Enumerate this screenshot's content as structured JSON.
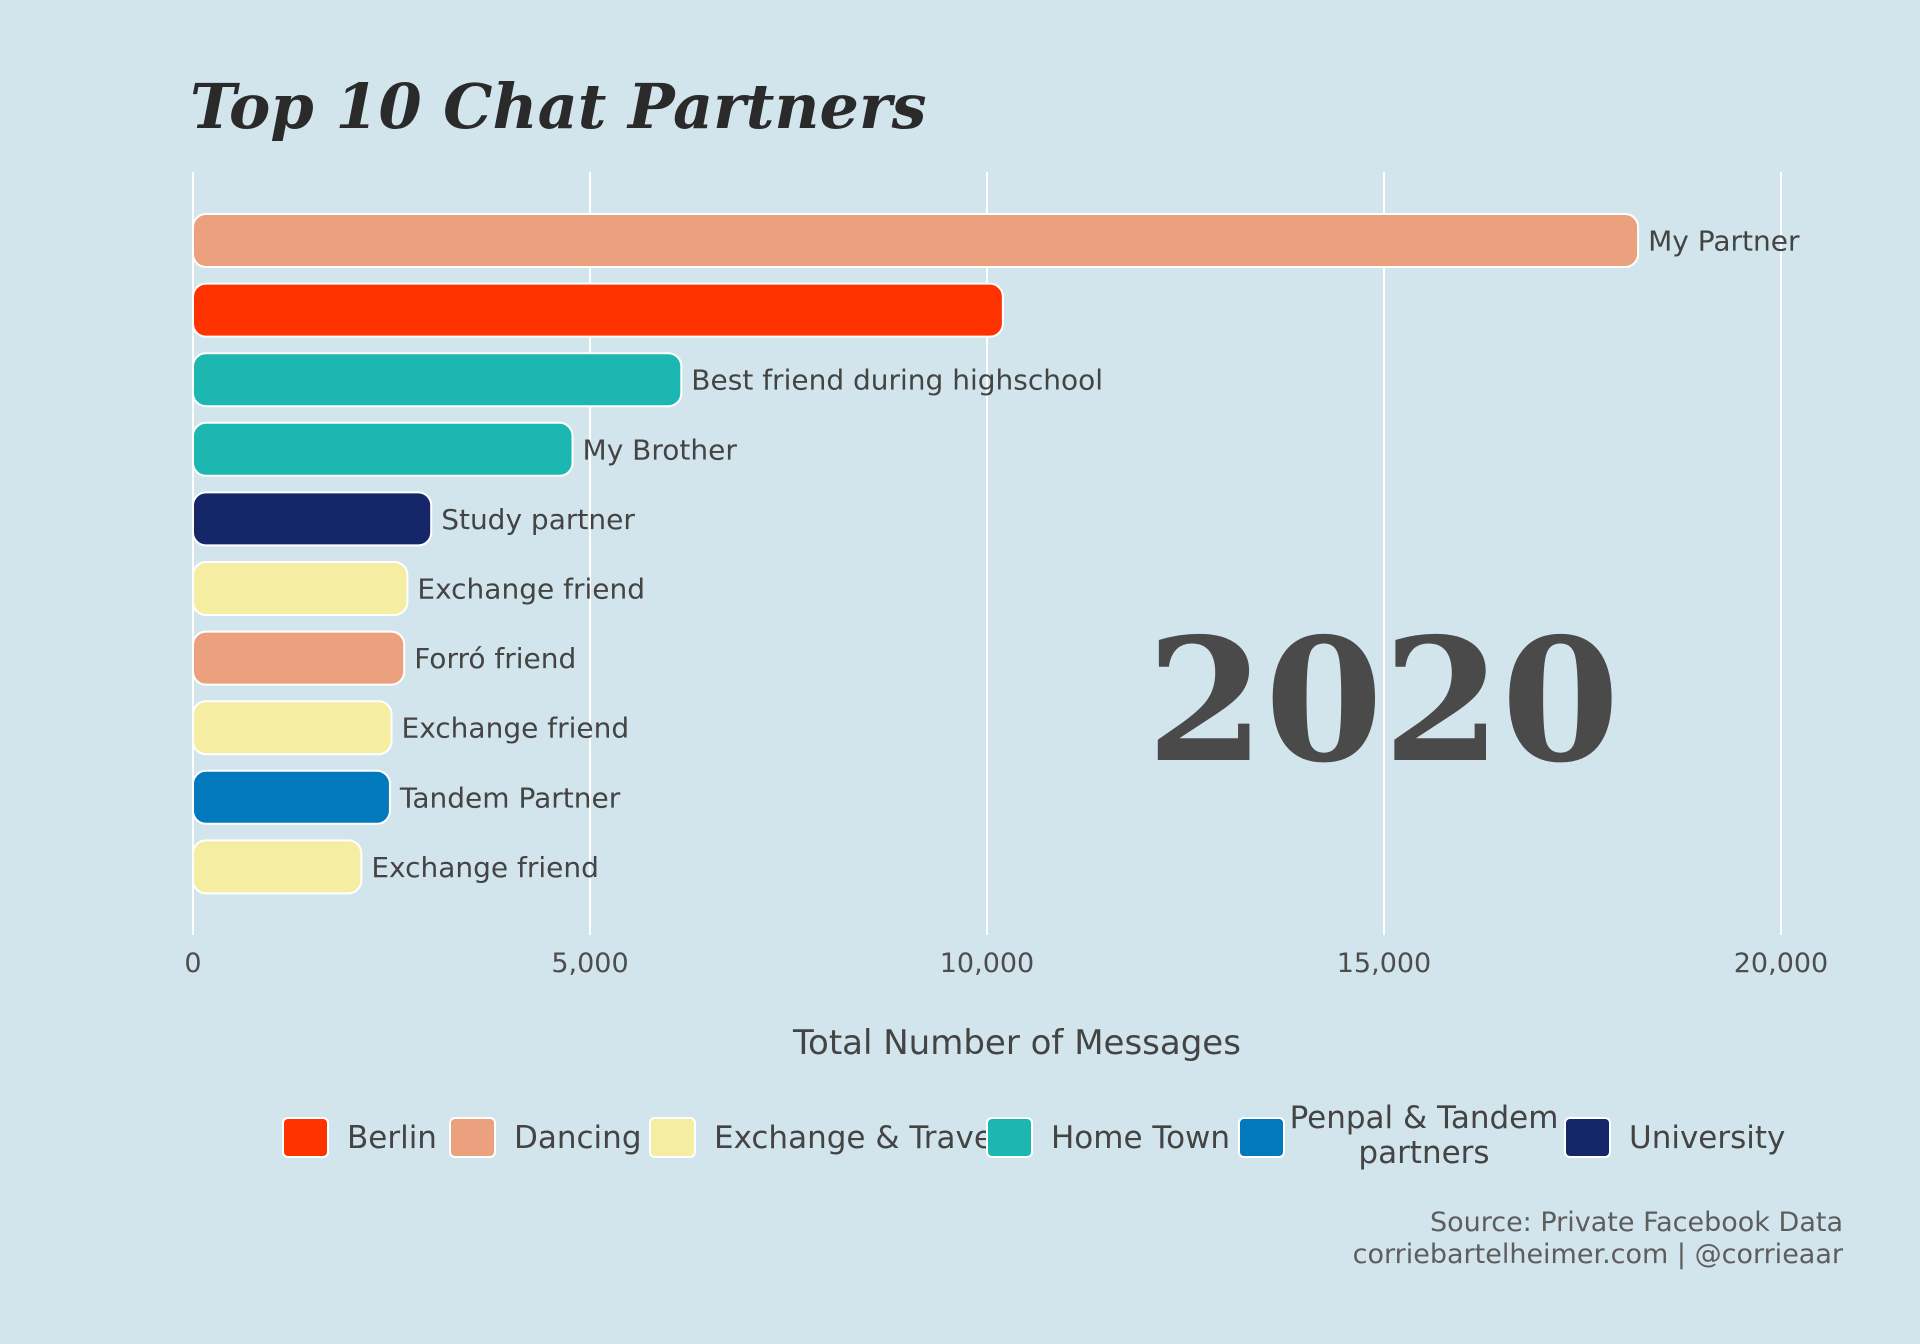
{
  "chart_data": {
    "type": "bar",
    "orientation": "horizontal",
    "title": "Top 10 Chat Partners",
    "year_label": "2020",
    "xlabel": "Total Number of Messages",
    "xlim": [
      0,
      20000
    ],
    "x_ticks": [
      {
        "value": 0,
        "label": "0"
      },
      {
        "value": 5000,
        "label": "5,000"
      },
      {
        "value": 10000,
        "label": "10,000"
      },
      {
        "value": 15000,
        "label": "15,000"
      },
      {
        "value": 20000,
        "label": "20,000"
      }
    ],
    "grid": "vertical",
    "legend_position": "bottom",
    "categories_colors": {
      "Berlin": "#ff3300",
      "Dancing": "#eba17e",
      "Exchange & Travel": "#f5eda2",
      "Home Town": "#1db7b1",
      "Penpal & Tandem partners": "#0278bd",
      "University": "#162769"
    },
    "bars": [
      {
        "label": "My Partner",
        "value": 18200,
        "category": "Dancing"
      },
      {
        "label": "",
        "value": 10200,
        "category": "Berlin"
      },
      {
        "label": "Best friend during highschool",
        "value": 6150,
        "category": "Home Town"
      },
      {
        "label": "My Brother",
        "value": 4780,
        "category": "Home Town"
      },
      {
        "label": "Study partner",
        "value": 3000,
        "category": "University"
      },
      {
        "label": "Exchange friend",
        "value": 2700,
        "category": "Exchange & Travel"
      },
      {
        "label": "Forró friend",
        "value": 2660,
        "category": "Dancing"
      },
      {
        "label": "Exchange friend",
        "value": 2500,
        "category": "Exchange & Travel"
      },
      {
        "label": "Tandem Partner",
        "value": 2480,
        "category": "Penpal & Tandem partners"
      },
      {
        "label": "Exchange friend",
        "value": 2120,
        "category": "Exchange & Travel"
      }
    ],
    "legend": [
      {
        "lines": [
          "Berlin"
        ],
        "color": "#ff3300"
      },
      {
        "lines": [
          "Dancing"
        ],
        "color": "#eba17e"
      },
      {
        "lines": [
          "Exchange & Travel"
        ],
        "color": "#f5eda2"
      },
      {
        "lines": [
          "Home Town"
        ],
        "color": "#1db7b1"
      },
      {
        "lines": [
          "Penpal & Tandem",
          "partners"
        ],
        "color": "#0278bd"
      },
      {
        "lines": [
          "University"
        ],
        "color": "#162769"
      }
    ]
  },
  "caption": {
    "source": "Source: Private Facebook Data",
    "credit": "corriebartelheimer.com | @corrieaar"
  },
  "colors": {
    "background": "#d3e5ec",
    "grid": "#ffffff",
    "bar_stroke": "#ffffff"
  }
}
